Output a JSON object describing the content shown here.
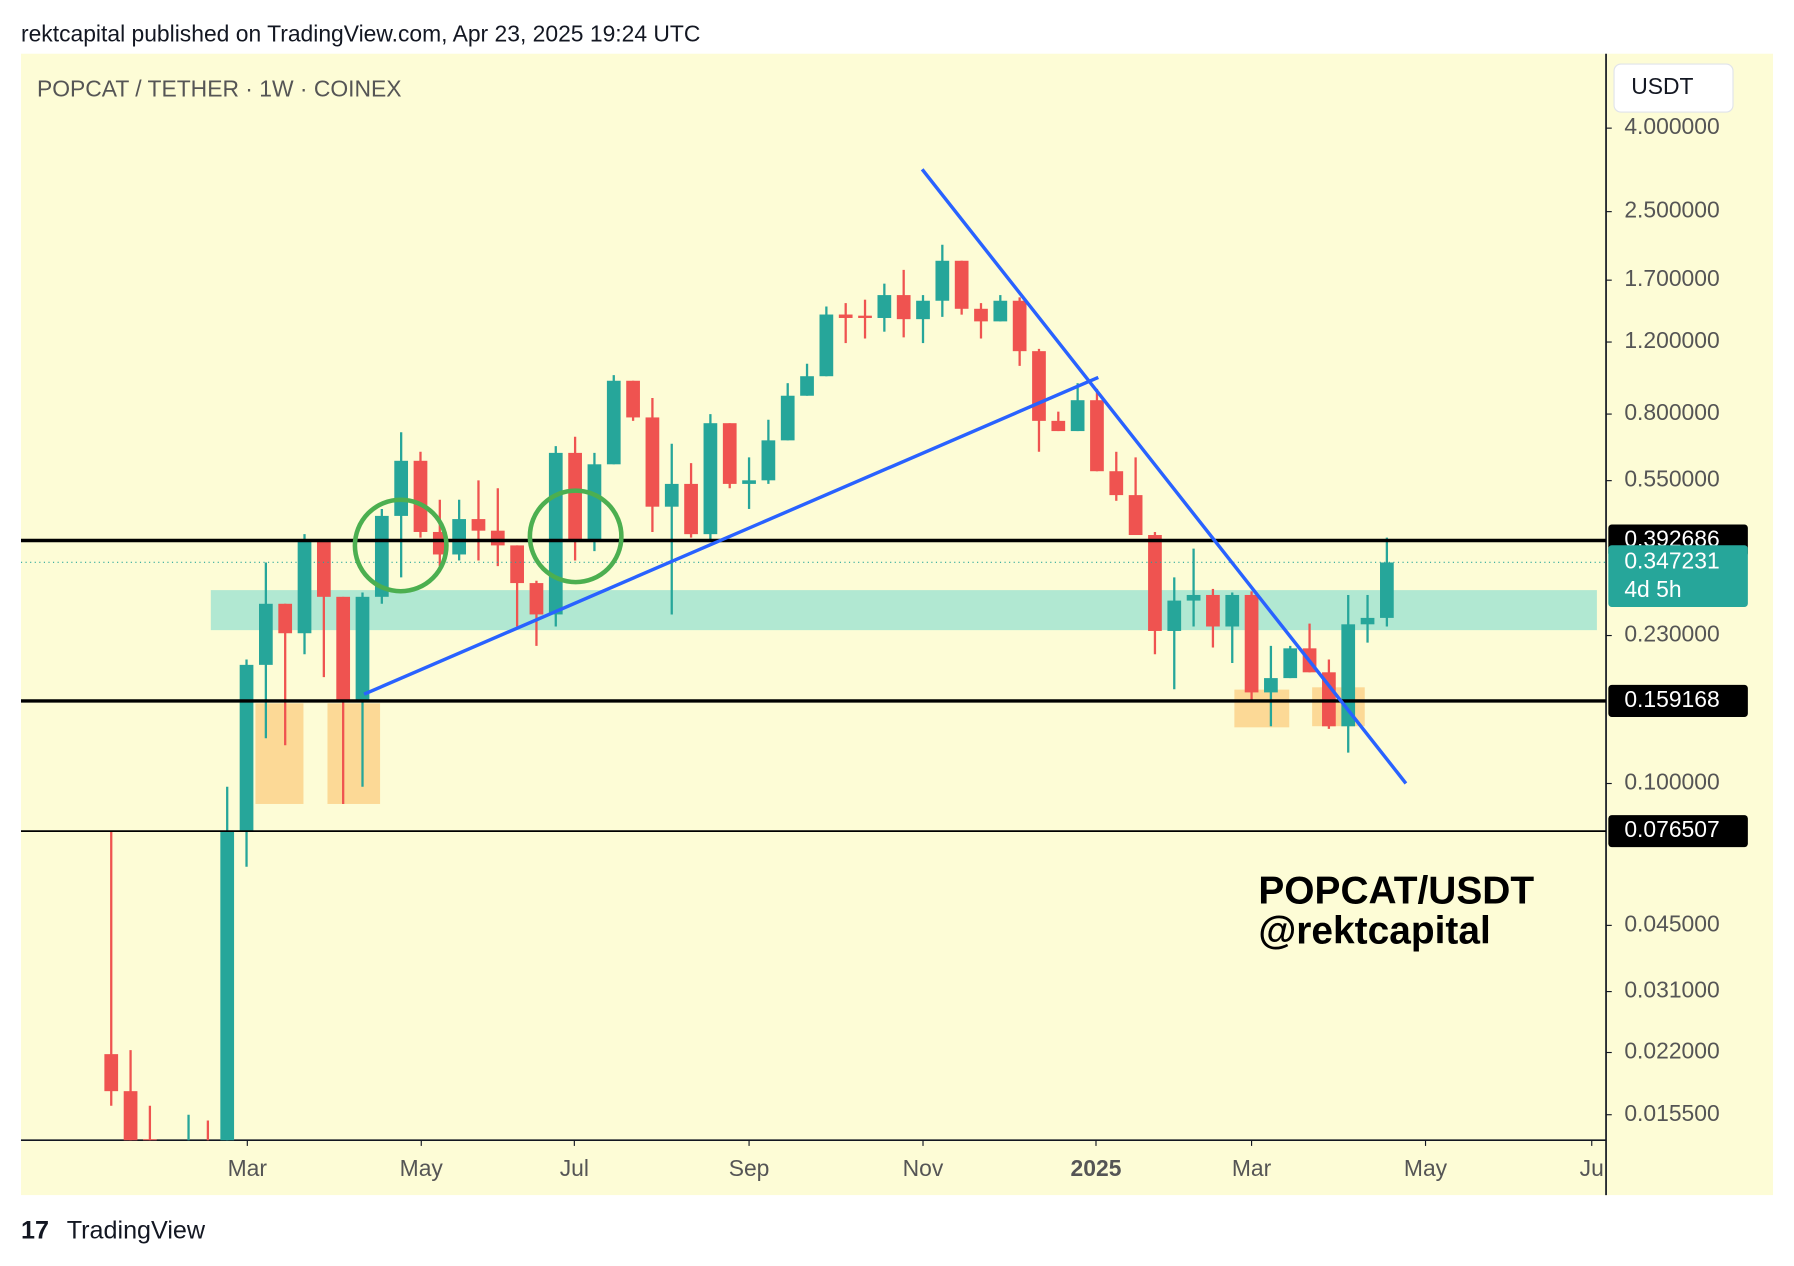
{
  "header": "rektcapital published on TradingView.com, Apr 23, 2025 19:24 UTC",
  "footer": "TradingView",
  "chart_data": {
    "type": "candlestick",
    "title": "POPCAT / TETHER · 1W · COINEX",
    "currency": "USDT",
    "annotation": [
      "POPCAT/USDT",
      "@rektcapital"
    ],
    "log_scale": true,
    "up_color": "#26a69a",
    "down_color": "#ef5350",
    "open": [
      0.0218,
      0.0177,
      0.0135,
      0.013,
      0.0128,
      0.013,
      0.0128,
      0.0763,
      0.195,
      0.275,
      0.233,
      0.392,
      0.286,
      0.159,
      0.286,
      0.451,
      0.615,
      0.412,
      0.363,
      0.443,
      0.415,
      0.382,
      0.309,
      0.259,
      0.643,
      0.394,
      0.603,
      0.965,
      0.785,
      0.475,
      0.54,
      0.407,
      0.76,
      0.54,
      0.551,
      0.69,
      0.887,
      0.99,
      1.401,
      1.392,
      1.374,
      1.563,
      1.365,
      1.514,
      1.896,
      1.447,
      1.348,
      1.514,
      1.14,
      0.77,
      0.727,
      0.865,
      0.58,
      0.507,
      0.405,
      0.236,
      0.28,
      0.289,
      0.242,
      0.289,
      0.167,
      0.181,
      0.214,
      0.187,
      0.138,
      0.245,
      0.254
    ],
    "high": [
      0.0763,
      0.0223,
      0.0163,
      0.0132,
      0.0155,
      0.015,
      0.0982,
      0.201,
      0.347,
      0.275,
      0.407,
      0.392,
      0.286,
      0.293,
      0.469,
      0.722,
      0.647,
      0.494,
      0.494,
      0.551,
      0.527,
      0.382,
      0.313,
      0.668,
      0.704,
      0.643,
      0.996,
      0.965,
      0.876,
      0.677,
      0.607,
      0.8,
      0.76,
      0.627,
      0.775,
      0.952,
      1.062,
      1.466,
      1.494,
      1.523,
      1.667,
      1.801,
      1.563,
      2.075,
      1.896,
      1.494,
      1.563,
      1.543,
      1.155,
      0.811,
      0.952,
      0.922,
      0.647,
      0.627,
      0.412,
      0.319,
      0.375,
      0.299,
      0.293,
      0.295,
      0.217,
      0.217,
      0.246,
      0.201,
      0.289,
      0.289,
      0.399
    ],
    "low": [
      0.0163,
      0.012,
      0.0125,
      0.012,
      0.0125,
      0.0124,
      0.0125,
      0.0626,
      0.129,
      0.124,
      0.207,
      0.182,
      0.0891,
      0.0982,
      0.275,
      0.319,
      0.399,
      0.34,
      0.351,
      0.351,
      0.34,
      0.242,
      0.217,
      0.242,
      0.351,
      0.37,
      0.603,
      0.77,
      0.412,
      0.259,
      0.399,
      0.392,
      0.527,
      0.469,
      0.54,
      0.69,
      0.887,
      0.99,
      1.193,
      1.224,
      1.272,
      1.232,
      1.193,
      1.383,
      1.4,
      1.224,
      1.348,
      1.049,
      0.647,
      0.727,
      0.727,
      0.58,
      0.491,
      0.405,
      0.207,
      0.17,
      0.242,
      0.215,
      0.197,
      0.16,
      0.138,
      0.181,
      0.187,
      0.136,
      0.119,
      0.221,
      0.242
    ],
    "close": [
      0.0177,
      0.0125,
      0.013,
      0.0128,
      0.013,
      0.0128,
      0.0763,
      0.195,
      0.275,
      0.233,
      0.392,
      0.286,
      0.159,
      0.286,
      0.451,
      0.615,
      0.412,
      0.363,
      0.443,
      0.415,
      0.382,
      0.309,
      0.259,
      0.643,
      0.394,
      0.603,
      0.965,
      0.785,
      0.475,
      0.54,
      0.407,
      0.76,
      0.54,
      0.551,
      0.69,
      0.887,
      0.99,
      1.401,
      1.374,
      1.374,
      1.563,
      1.365,
      1.514,
      1.896,
      1.447,
      1.348,
      1.514,
      1.14,
      0.77,
      0.727,
      0.865,
      0.58,
      0.507,
      0.405,
      0.236,
      0.28,
      0.289,
      0.242,
      0.289,
      0.167,
      0.181,
      0.214,
      0.187,
      0.138,
      0.245,
      0.254,
      0.347
    ],
    "xlim": [
      -4.67,
      77.34
    ],
    "xticks": [
      {
        "value": 7.04,
        "label": "Mar"
      },
      {
        "value": 16.04,
        "label": "May"
      },
      {
        "value": 23.96,
        "label": "Jul"
      },
      {
        "value": 33.0,
        "label": "Sep"
      },
      {
        "value": 42.0,
        "label": "Nov"
      },
      {
        "value": 50.95,
        "label": "2025"
      },
      {
        "value": 59.0,
        "label": "Mar"
      },
      {
        "value": 68.0,
        "label": "May"
      },
      {
        "value": 76.6,
        "label": "Ju"
      }
    ],
    "ylim": [
      0.01343,
      6.08
    ],
    "yticks": [
      {
        "value": 4,
        "label": "4.000000"
      },
      {
        "value": 2.5,
        "label": "2.500000"
      },
      {
        "value": 1.7,
        "label": "1.700000"
      },
      {
        "value": 1.2,
        "label": "1.200000"
      },
      {
        "value": 0.8,
        "label": "0.800000"
      },
      {
        "value": 0.55,
        "label": "0.550000"
      },
      {
        "value": 0.23,
        "label": "0.230000"
      },
      {
        "value": 0.1,
        "label": "0.100000"
      },
      {
        "value": 0.045,
        "label": "0.045000"
      },
      {
        "value": 0.031,
        "label": "0.031000"
      },
      {
        "value": 0.022,
        "label": "0.022000"
      },
      {
        "value": 0.0155,
        "label": "0.015500"
      }
    ],
    "price_lines": [
      0.392686,
      0.159168,
      0.076507
    ],
    "last_price": 0.347231,
    "countdown": "4d 5h"
  }
}
